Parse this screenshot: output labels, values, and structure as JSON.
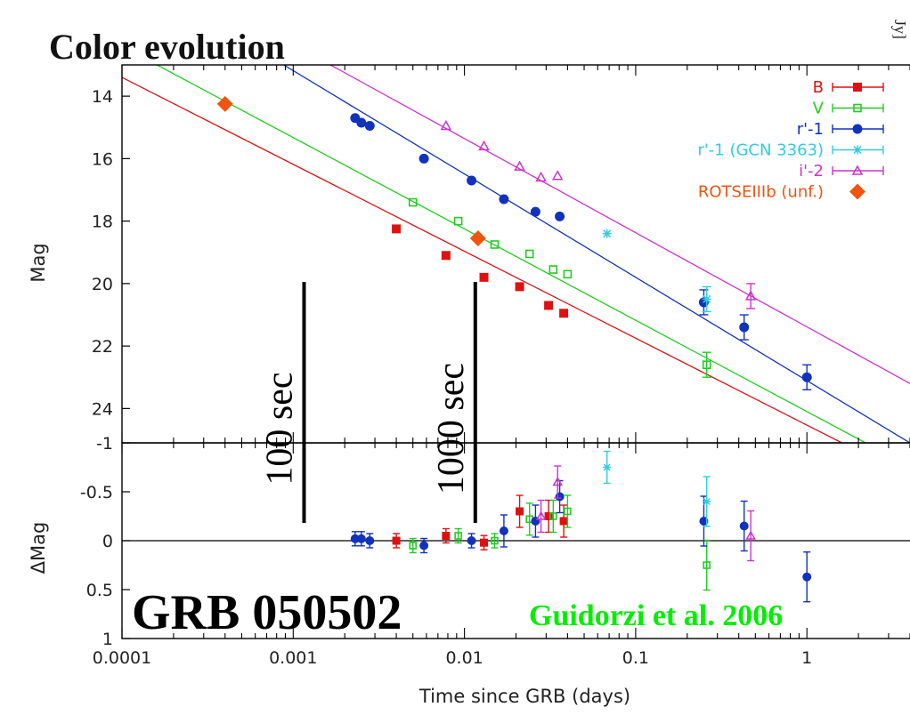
{
  "slide_title": "Color evolution",
  "corner_fragment": "Jy]",
  "object_label": "GRB 050502",
  "credit": "Guidorzi et al. 2006",
  "time_markers": [
    {
      "label": "100 sec",
      "t": 0.001157
    },
    {
      "label": "1000 sec",
      "t": 0.01157
    }
  ],
  "colors": {
    "B": "#dd1111",
    "V": "#22cc22",
    "r1": "#1133bb",
    "r1gcn": "#33ccdd",
    "i2": "#cc33cc",
    "rotse": "#ee5511",
    "credit": "#00ee00",
    "marker": "#000000"
  },
  "chart_data": [
    {
      "type": "scatter",
      "panel": "top",
      "ylabel": "Mag",
      "xlim": [
        0.0001,
        4
      ],
      "ylim": [
        13,
        25.1
      ],
      "x_scale": "log",
      "y_inverted": true,
      "yticks": [
        14,
        16,
        18,
        20,
        22,
        24
      ],
      "legend_position": "top-right",
      "series": [
        {
          "name": "B",
          "key": "B",
          "marker": "square",
          "fit": [
            [
              0.0001,
              13.4
            ],
            [
              1.6,
              25.1
            ]
          ],
          "points": [
            [
              0.004,
              18.25
            ],
            [
              0.0078,
              19.1
            ],
            [
              0.013,
              19.8
            ],
            [
              0.021,
              20.1
            ],
            [
              0.031,
              20.7
            ],
            [
              0.038,
              20.95
            ]
          ]
        },
        {
          "name": "V",
          "key": "V",
          "marker": "open-square",
          "fit": [
            [
              0.00016,
              13.0
            ],
            [
              2.2,
              25.1
            ]
          ],
          "points": [
            [
              0.005,
              17.4
            ],
            [
              0.0092,
              18.0
            ],
            [
              0.015,
              18.75
            ],
            [
              0.024,
              19.05
            ],
            [
              0.033,
              19.55
            ],
            [
              0.04,
              19.7
            ],
            [
              0.26,
              22.6
            ]
          ]
        },
        {
          "name": "r'-1",
          "key": "r1",
          "marker": "circle",
          "fit": [
            [
              0.00088,
              13.0
            ],
            [
              4.0,
              25.1
            ]
          ],
          "points": [
            [
              0.0023,
              14.7
            ],
            [
              0.0025,
              14.85
            ],
            [
              0.0028,
              14.95
            ],
            [
              0.0058,
              16.0
            ],
            [
              0.011,
              16.7
            ],
            [
              0.017,
              17.3
            ],
            [
              0.026,
              17.7
            ],
            [
              0.036,
              17.85
            ],
            [
              0.25,
              20.6
            ],
            [
              0.43,
              21.4
            ],
            [
              1.0,
              23.0
            ]
          ]
        },
        {
          "name": "r'-1 (GCN 3363)",
          "key": "r1gcn",
          "marker": "asterisk",
          "fit": null,
          "points": [
            [
              0.068,
              18.4
            ],
            [
              0.26,
              20.5
            ]
          ]
        },
        {
          "name": "i'-2",
          "key": "i2",
          "marker": "triangle",
          "fit": [
            [
              0.00165,
              13.0
            ],
            [
              4.0,
              23.2
            ]
          ],
          "points": [
            [
              0.0078,
              14.95
            ],
            [
              0.013,
              15.6
            ],
            [
              0.021,
              16.25
            ],
            [
              0.028,
              16.6
            ],
            [
              0.035,
              16.55
            ],
            [
              0.47,
              20.4
            ]
          ]
        },
        {
          "name": "ROTSEIIIb (unf.)",
          "key": "rotse",
          "marker": "diamond",
          "fit": null,
          "points": [
            [
              0.0004,
              14.25
            ],
            [
              0.012,
              18.55
            ]
          ]
        }
      ]
    },
    {
      "type": "scatter",
      "panel": "bottom",
      "xlabel": "Time since GRB (days)",
      "ylabel": "ΔMag",
      "xlim": [
        0.0001,
        4
      ],
      "ylim": [
        -1,
        1
      ],
      "x_scale": "log",
      "y_inverted": true,
      "yticks": [
        -1,
        -0.5,
        0,
        0.5,
        1
      ],
      "xticks": [
        0.0001,
        0.001,
        0.01,
        0.1,
        1
      ],
      "xtick_labels": [
        "0.0001",
        "0.001",
        "0.01",
        "0.1",
        "1"
      ],
      "series": [
        {
          "key": "B",
          "marker": "square",
          "points": [
            [
              0.004,
              0.0
            ],
            [
              0.0078,
              -0.05
            ],
            [
              0.013,
              0.02
            ],
            [
              0.021,
              -0.3
            ],
            [
              0.031,
              -0.25
            ],
            [
              0.038,
              -0.2
            ]
          ]
        },
        {
          "key": "V",
          "marker": "open-square",
          "points": [
            [
              0.005,
              0.05
            ],
            [
              0.0092,
              -0.05
            ],
            [
              0.015,
              0.0
            ],
            [
              0.024,
              -0.22
            ],
            [
              0.033,
              -0.25
            ],
            [
              0.04,
              -0.3
            ],
            [
              0.26,
              0.25
            ]
          ]
        },
        {
          "key": "r1",
          "marker": "circle",
          "points": [
            [
              0.0023,
              -0.02
            ],
            [
              0.0025,
              -0.02
            ],
            [
              0.0028,
              0.0
            ],
            [
              0.0058,
              0.05
            ],
            [
              0.011,
              0.0
            ],
            [
              0.017,
              -0.1
            ],
            [
              0.026,
              -0.2
            ],
            [
              0.036,
              -0.45
            ],
            [
              0.25,
              -0.2
            ],
            [
              0.43,
              -0.15
            ],
            [
              1.0,
              0.37
            ]
          ]
        },
        {
          "key": "r1gcn",
          "marker": "asterisk",
          "points": [
            [
              0.068,
              -0.75
            ],
            [
              0.26,
              -0.4
            ]
          ]
        },
        {
          "key": "i2",
          "marker": "triangle",
          "points": [
            [
              0.028,
              -0.25
            ],
            [
              0.035,
              -0.6
            ],
            [
              0.47,
              -0.05
            ]
          ]
        }
      ]
    }
  ]
}
